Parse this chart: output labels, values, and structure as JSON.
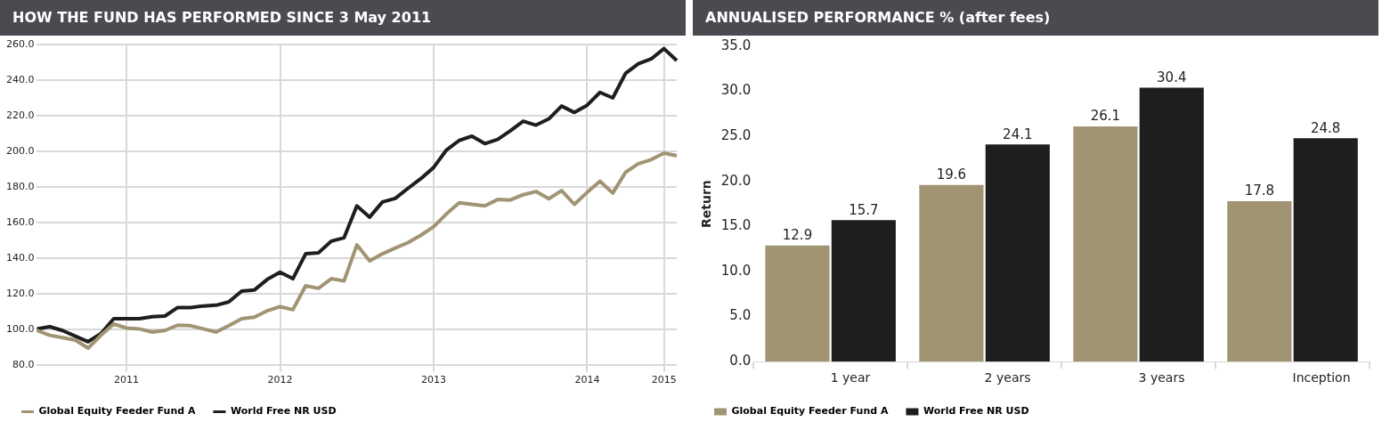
{
  "chart_data": [
    {
      "type": "line",
      "title": "HOW THE FUND HAS PERFORMED SINCE 3 May 2011",
      "categories": [
        null,
        null,
        null,
        null,
        null,
        null,
        null,
        "2011",
        null,
        null,
        null,
        null,
        null,
        null,
        null,
        null,
        null,
        null,
        null,
        "2012",
        null,
        null,
        null,
        null,
        null,
        null,
        null,
        null,
        null,
        null,
        null,
        "2013",
        null,
        null,
        null,
        null,
        null,
        null,
        null,
        null,
        null,
        null,
        null,
        "2014",
        null,
        null,
        null,
        null,
        null,
        "2015",
        null
      ],
      "series": [
        {
          "name": "Global Equity Feeder Fund A",
          "color": "#a09472",
          "values": [
            99.3,
            96.6,
            95.3,
            93.9,
            89.4,
            96.6,
            102.9,
            100.7,
            100.2,
            98.4,
            99.3,
            102.3,
            102,
            100.2,
            98.4,
            102,
            105.9,
            106.8,
            110.4,
            112.7,
            111,
            124.4,
            123,
            128.4,
            127.1,
            147.4,
            138.4,
            142.4,
            145.6,
            148.7,
            152.8,
            157.6,
            164.8,
            171.1,
            170.2,
            169.3,
            172.9,
            172.6,
            175.6,
            177.4,
            173.3,
            177.9,
            170.2,
            176.9,
            183.2,
            176.5,
            188.2,
            193,
            195.3,
            199,
            197.5
          ]
        },
        {
          "name": "World Free NR USD",
          "color": "#1e1e1e",
          "values": [
            100.2,
            101.4,
            99.3,
            96.1,
            93,
            97.5,
            105.9,
            105.9,
            105.9,
            107,
            107.4,
            112.2,
            112.2,
            113.1,
            113.5,
            115.4,
            121.4,
            122.1,
            128,
            132.1,
            128.4,
            142.4,
            142.9,
            149.5,
            151.4,
            169.3,
            163,
            171.5,
            173.5,
            179.2,
            184.6,
            190.9,
            200.7,
            206.1,
            208.5,
            204.3,
            206.7,
            211.5,
            216.9,
            214.7,
            218.2,
            225.4,
            221.8,
            225.9,
            233.1,
            230,
            243.8,
            249.2,
            251.9,
            257.7,
            251
          ]
        }
      ],
      "ylim": [
        80,
        260
      ],
      "yticks": [
        {
          "value": 80,
          "label": "80.0"
        },
        {
          "value": 100,
          "label": "100.0"
        },
        {
          "value": 120,
          "label": "120.0"
        },
        {
          "value": 140,
          "label": "140.0"
        },
        {
          "value": 160,
          "label": "160.0"
        },
        {
          "value": 180,
          "label": "180.0"
        },
        {
          "value": 200,
          "label": "200.0"
        },
        {
          "value": 220,
          "label": "220.0"
        },
        {
          "value": 240,
          "label": "240.0"
        },
        {
          "value": 260,
          "label": "260.0"
        }
      ],
      "grid": true,
      "legend": "bottom left",
      "marker": "none",
      "line_style": "solid"
    },
    {
      "type": "bar",
      "title": "ANNUALISED PERFORMANCE % (after fees)",
      "ylabel": "Return",
      "categories": [
        "1 year",
        "2 years",
        "3 years",
        "Inception"
      ],
      "series": [
        {
          "name": "Global Equity Feeder Fund A",
          "color": "#a09472",
          "values": [
            12.9,
            19.6,
            26.1,
            17.8
          ]
        },
        {
          "name": "World Free NR USD",
          "color": "#1e1e1e",
          "values": [
            15.7,
            24.1,
            30.4,
            24.8
          ]
        }
      ],
      "ylim": [
        0,
        35
      ],
      "yticks": [
        {
          "value": 0,
          "label": "0.0"
        },
        {
          "value": 5,
          "label": "5.0"
        },
        {
          "value": 10,
          "label": "10.0"
        },
        {
          "value": 15,
          "label": "15.0"
        },
        {
          "value": 20,
          "label": "20.0"
        },
        {
          "value": 25,
          "label": "25.0"
        },
        {
          "value": 30,
          "label": "30.0"
        },
        {
          "value": 35,
          "label": "35.0"
        }
      ],
      "grid": false,
      "legend": "bottom left",
      "data_labels": true
    }
  ]
}
